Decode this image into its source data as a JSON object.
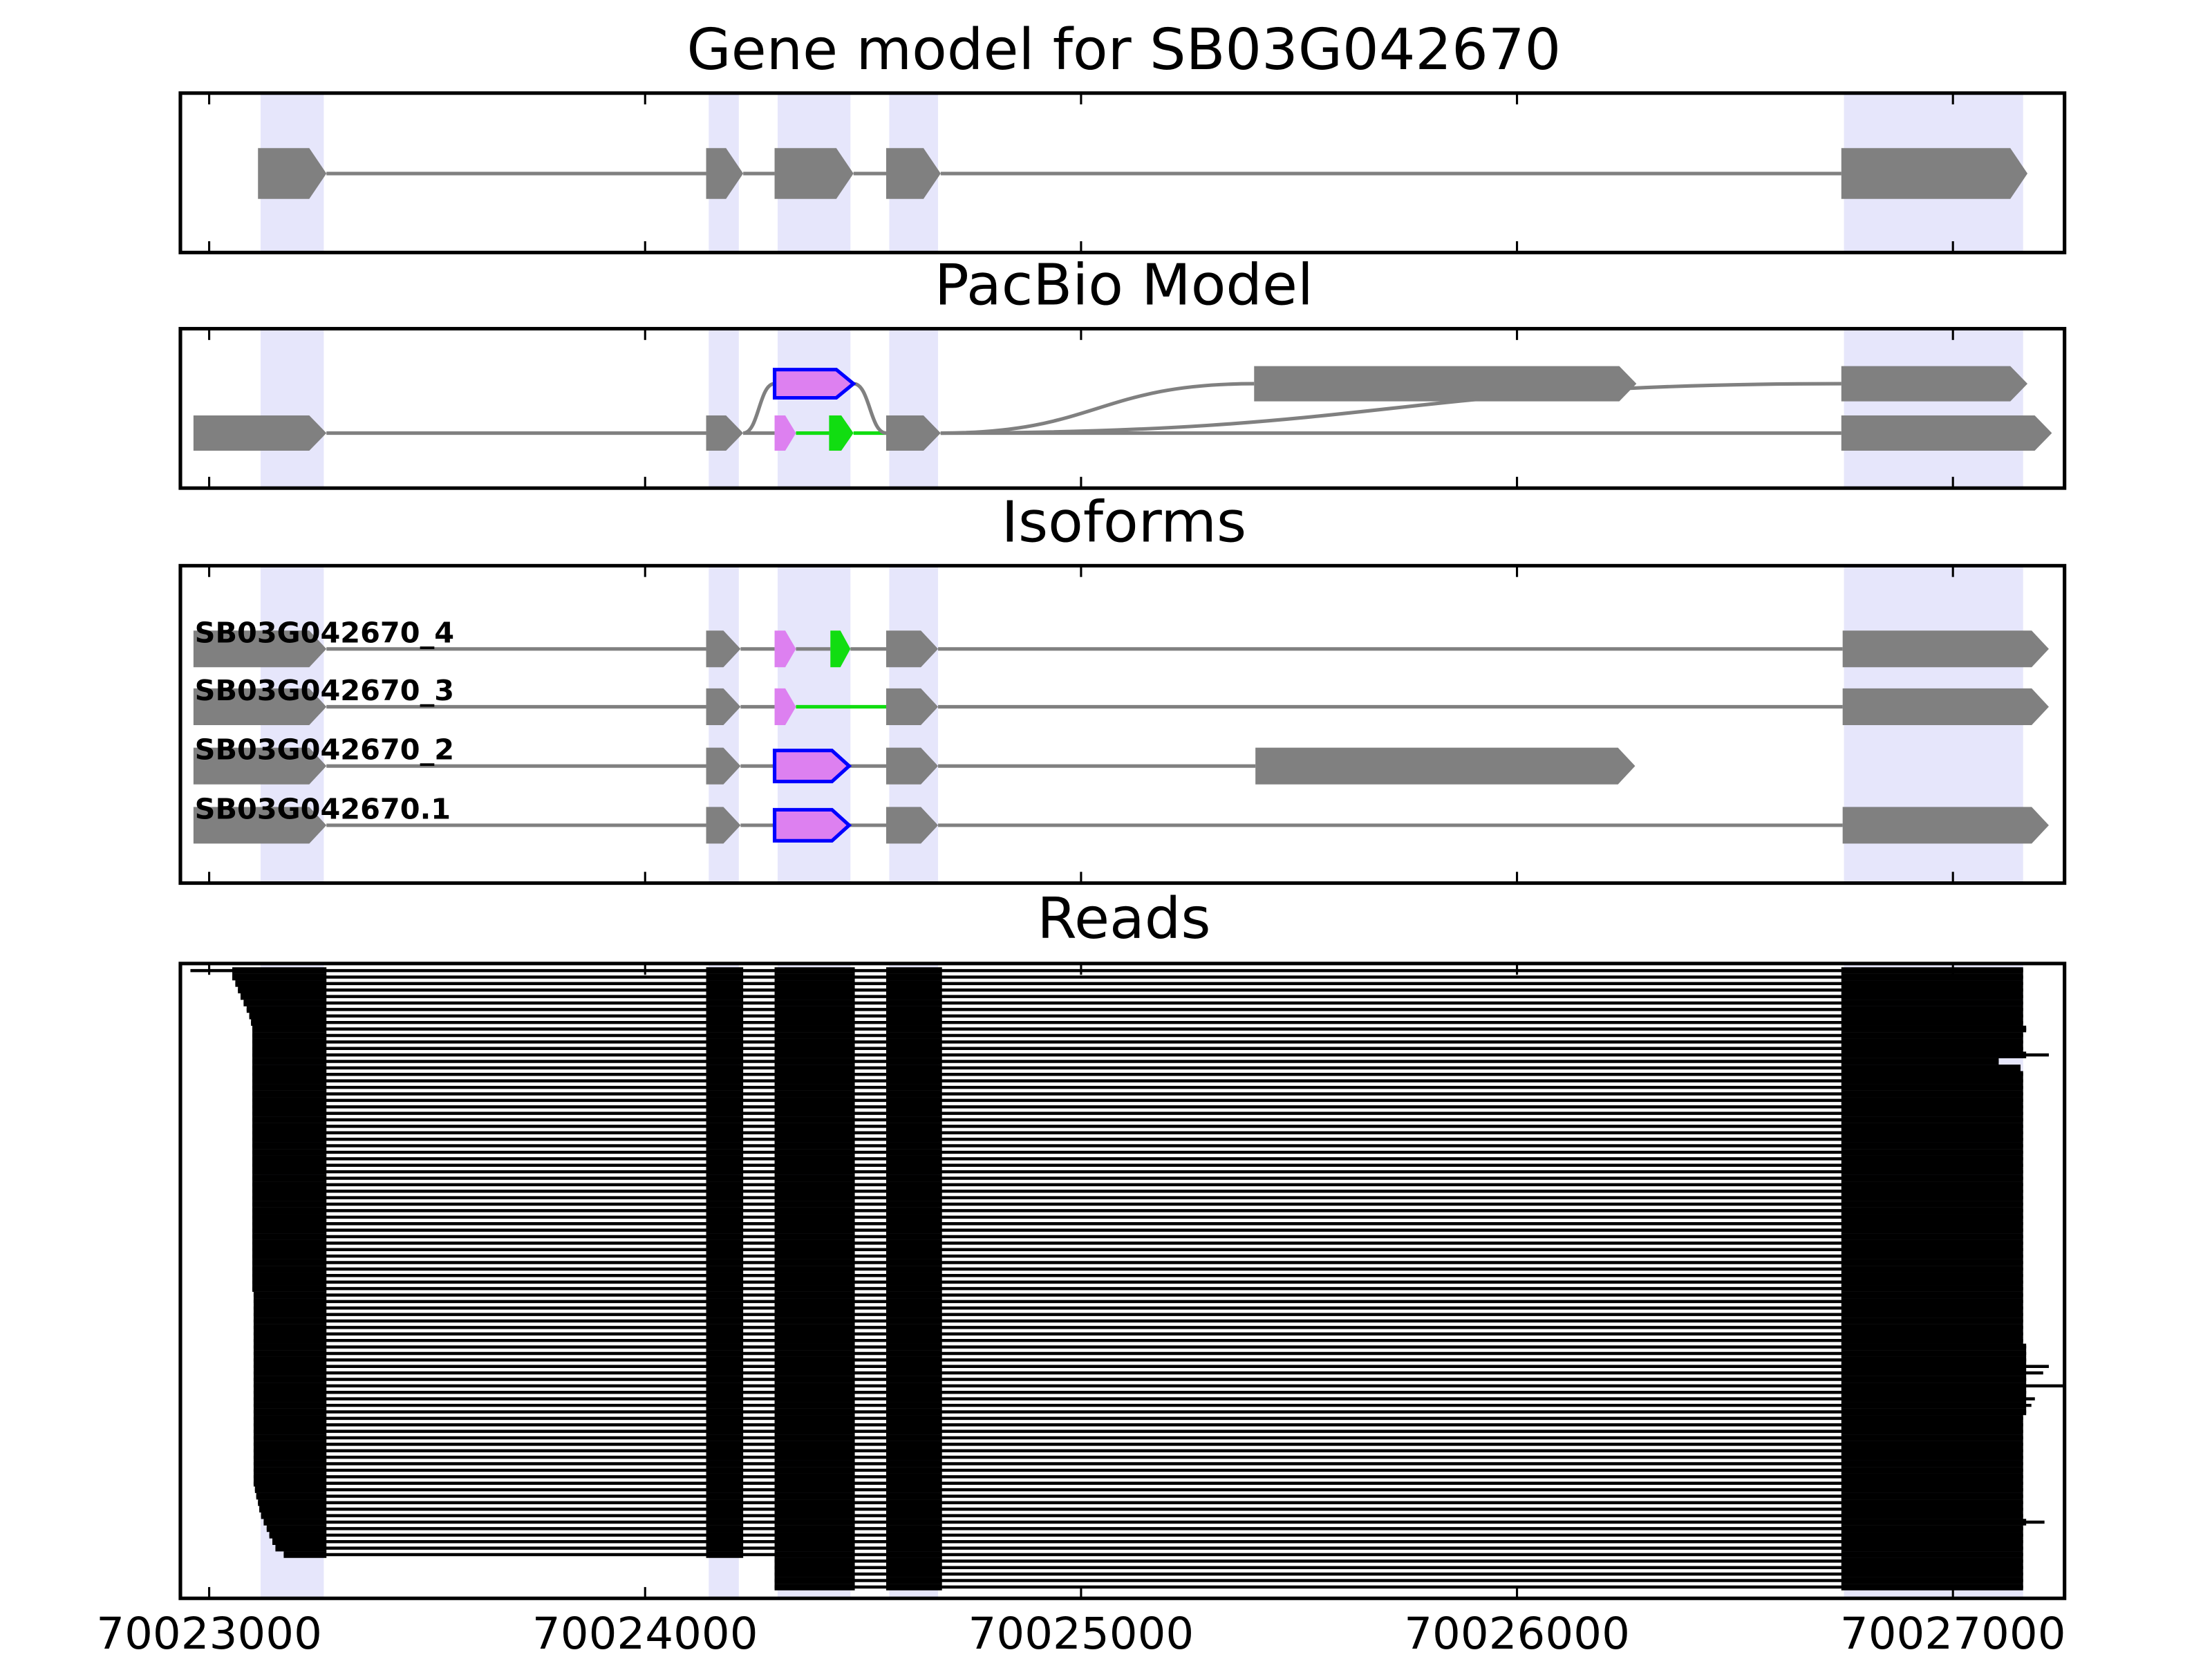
{
  "chart_data": [
    {
      "type": "gene",
      "title": "Gene model for SB03G042670",
      "xlim": [
        70022934,
        70027256
      ],
      "color": "#808080",
      "highlight_color": "#e6e6fb",
      "highlights": [
        [
          70023118,
          70023263
        ],
        [
          70024146,
          70024215
        ],
        [
          70024304,
          70024471
        ],
        [
          70024560,
          70024672
        ],
        [
          70026750,
          70027161
        ]
      ],
      "exons": [
        {
          "start": 70023112,
          "end": 70023269
        },
        {
          "start": 70024140,
          "end": 70024225
        },
        {
          "start": 70024297,
          "end": 70024478
        },
        {
          "start": 70024553,
          "end": 70024678
        },
        {
          "start": 70026744,
          "end": 70027171
        }
      ]
    },
    {
      "type": "graph",
      "title": "PacBio Model",
      "xlim": [
        70022934,
        70027256
      ],
      "highlight_color": "#e6e6fb",
      "highlights": [
        [
          70023118,
          70023263
        ],
        [
          70024146,
          70024215
        ],
        [
          70024304,
          70024471
        ],
        [
          70024560,
          70024672
        ],
        [
          70026750,
          70027161
        ]
      ],
      "nodes": [
        {
          "start": 70022964,
          "end": 70023269,
          "row": 1,
          "color": "#808080"
        },
        {
          "start": 70024140,
          "end": 70024225,
          "row": 1,
          "color": "#808080"
        },
        {
          "start": 70024297,
          "end": 70024346,
          "row": 1,
          "color": "#dd80f0"
        },
        {
          "start": 70024422,
          "end": 70024478,
          "row": 1,
          "color": "#11dd11"
        },
        {
          "start": 70024553,
          "end": 70024678,
          "row": 1,
          "color": "#808080"
        },
        {
          "start": 70026744,
          "end": 70027227,
          "row": 1,
          "color": "#808080"
        },
        {
          "start": 70024297,
          "end": 70024478,
          "row": 0,
          "color": "#dd80f0",
          "edge": "#0000ff"
        },
        {
          "start": 70025397,
          "end": 70026274,
          "row": 0,
          "color": "#808080"
        },
        {
          "start": 70026744,
          "end": 70027171,
          "row": 0,
          "color": "#808080"
        }
      ],
      "edges": [
        [
          0,
          1,
          "#808080"
        ],
        [
          1,
          2,
          "#808080"
        ],
        [
          2,
          3,
          "#11dd11"
        ],
        [
          3,
          4,
          "#11dd11"
        ],
        [
          1,
          6,
          "#808080"
        ],
        [
          6,
          4,
          "#808080"
        ],
        [
          4,
          5,
          "#808080"
        ],
        [
          4,
          7,
          "#808080"
        ],
        [
          4,
          8,
          "#808080"
        ]
      ]
    },
    {
      "type": "isoforms",
      "title": "Isoforms",
      "xlim": [
        70022934,
        70027256
      ],
      "highlight_color": "#e6e6fb",
      "highlights": [
        [
          70023118,
          70023263
        ],
        [
          70024146,
          70024215
        ],
        [
          70024304,
          70024471
        ],
        [
          70024560,
          70024672
        ],
        [
          70026750,
          70027161
        ]
      ],
      "isoforms": [
        {
          "name": "SB03G042670_4",
          "introns": [
            "#808080",
            "#808080",
            "#808080",
            "#808080",
            "#808080"
          ],
          "exons": [
            {
              "start": 70022964,
              "end": 70023269,
              "color": "#808080"
            },
            {
              "start": 70024140,
              "end": 70024219,
              "color": "#808080"
            },
            {
              "start": 70024297,
              "end": 70024346,
              "color": "#dd80f0"
            },
            {
              "start": 70024425,
              "end": 70024471,
              "color": "#11dd11"
            },
            {
              "start": 70024553,
              "end": 70024672,
              "color": "#808080"
            },
            {
              "start": 70026747,
              "end": 70027220,
              "color": "#808080"
            }
          ]
        },
        {
          "name": "SB03G042670_3",
          "introns": [
            "#808080",
            "#808080",
            "#11dd11",
            "#808080"
          ],
          "exons": [
            {
              "start": 70022964,
              "end": 70023269,
              "color": "#808080"
            },
            {
              "start": 70024140,
              "end": 70024219,
              "color": "#808080"
            },
            {
              "start": 70024297,
              "end": 70024346,
              "color": "#dd80f0"
            },
            {
              "start": 70024553,
              "end": 70024672,
              "color": "#808080"
            },
            {
              "start": 70026747,
              "end": 70027220,
              "color": "#808080"
            }
          ]
        },
        {
          "name": "SB03G042670_2",
          "introns": [
            "#808080",
            "#808080",
            "#808080",
            "#808080"
          ],
          "exons": [
            {
              "start": 70022964,
              "end": 70023269,
              "color": "#808080"
            },
            {
              "start": 70024140,
              "end": 70024219,
              "color": "#808080"
            },
            {
              "start": 70024297,
              "end": 70024468,
              "color": "#dd80f0",
              "edge": "#0000ff"
            },
            {
              "start": 70024553,
              "end": 70024672,
              "color": "#808080"
            },
            {
              "start": 70025400,
              "end": 70026271,
              "color": "#808080"
            }
          ]
        },
        {
          "name": "SB03G042670.1",
          "introns": [
            "#808080",
            "#808080",
            "#808080",
            "#808080"
          ],
          "exons": [
            {
              "start": 70022964,
              "end": 70023269,
              "color": "#808080"
            },
            {
              "start": 70024140,
              "end": 70024219,
              "color": "#808080"
            },
            {
              "start": 70024297,
              "end": 70024468,
              "color": "#dd80f0",
              "edge": "#0000ff"
            },
            {
              "start": 70024553,
              "end": 70024672,
              "color": "#808080"
            },
            {
              "start": 70026747,
              "end": 70027220,
              "color": "#808080"
            }
          ]
        }
      ]
    },
    {
      "type": "reads",
      "title": "Reads",
      "xlim": [
        70022934,
        70027256
      ],
      "xticks": [
        70023000,
        70024000,
        70025000,
        70026000,
        70027000
      ],
      "color": "#000000",
      "highlight_color": "#e6e6fb",
      "highlights": [
        [
          70023118,
          70023263
        ],
        [
          70024146,
          70024215
        ],
        [
          70024304,
          70024471
        ],
        [
          70024560,
          70024672
        ],
        [
          70026750,
          70027161
        ]
      ],
      "blocks": [
        [
          70023053,
          70023269
        ],
        [
          70024140,
          70024225
        ],
        [
          70024297,
          70024481
        ],
        [
          70024553,
          70024681
        ],
        [
          70026744,
          70027168
        ]
      ],
      "reads": [
        [
          70022957,
          70027161
        ],
        [
          70023053,
          70027161
        ],
        [
          70023060,
          70027161
        ],
        [
          70023066,
          70027161
        ],
        [
          70023072,
          70027161
        ],
        [
          70023079,
          70027161
        ],
        [
          70023086,
          70027161
        ],
        [
          70023092,
          70027161
        ],
        [
          70023096,
          70027161
        ],
        [
          70023099,
          70027168
        ],
        [
          70023099,
          70027161
        ],
        [
          70023099,
          70027161
        ],
        [
          70023099,
          70027161
        ],
        [
          70023099,
          70027220
        ],
        [
          70023099,
          70027105
        ],
        [
          70023099,
          70027155
        ],
        [
          70023099,
          70027161
        ],
        [
          70023099,
          70027161
        ],
        [
          70023099,
          70027161
        ],
        [
          70023099,
          70027161
        ],
        [
          70023099,
          70027161
        ],
        [
          70023099,
          70027161
        ],
        [
          70023099,
          70027161
        ],
        [
          70023099,
          70027161
        ],
        [
          70023099,
          70027161
        ],
        [
          70023099,
          70027161
        ],
        [
          70023099,
          70027161
        ],
        [
          70023099,
          70027161
        ],
        [
          70023099,
          70027161
        ],
        [
          70023099,
          70027161
        ],
        [
          70023099,
          70027161
        ],
        [
          70023099,
          70027161
        ],
        [
          70023099,
          70027161
        ],
        [
          70023099,
          70027161
        ],
        [
          70023099,
          70027161
        ],
        [
          70023099,
          70027161
        ],
        [
          70023099,
          70027161
        ],
        [
          70023099,
          70027161
        ],
        [
          70023099,
          70027161
        ],
        [
          70023099,
          70027161
        ],
        [
          70023099,
          70027161
        ],
        [
          70023099,
          70027161
        ],
        [
          70023099,
          70027161
        ],
        [
          70023099,
          70027161
        ],
        [
          70023099,
          70027161
        ],
        [
          70023099,
          70027161
        ],
        [
          70023099,
          70027161
        ],
        [
          70023099,
          70027161
        ],
        [
          70023099,
          70027161
        ],
        [
          70023099,
          70027161
        ],
        [
          70023102,
          70027161
        ],
        [
          70023102,
          70027161
        ],
        [
          70023102,
          70027161
        ],
        [
          70023102,
          70027161
        ],
        [
          70023102,
          70027161
        ],
        [
          70023102,
          70027161
        ],
        [
          70023102,
          70027161
        ],
        [
          70023102,
          70027161
        ],
        [
          70023102,
          70027168
        ],
        [
          70023102,
          70027168
        ],
        [
          70023102,
          70027168
        ],
        [
          70023102,
          70027220
        ],
        [
          70023102,
          70027207
        ],
        [
          70023102,
          70027168
        ],
        [
          70023102,
          70027256
        ],
        [
          70023102,
          70027168
        ],
        [
          70023102,
          70027188
        ],
        [
          70023102,
          70027180
        ],
        [
          70023102,
          70027168
        ],
        [
          70023102,
          70027161
        ],
        [
          70023102,
          70027161
        ],
        [
          70023102,
          70027161
        ],
        [
          70023102,
          70027161
        ],
        [
          70023102,
          70027161
        ],
        [
          70023102,
          70027161
        ],
        [
          70023102,
          70027161
        ],
        [
          70023102,
          70027161
        ],
        [
          70023102,
          70027161
        ],
        [
          70023102,
          70027161
        ],
        [
          70023102,
          70027161
        ],
        [
          70023105,
          70027161
        ],
        [
          70023108,
          70027161
        ],
        [
          70023112,
          70027161
        ],
        [
          70023115,
          70027161
        ],
        [
          70023119,
          70027161
        ],
        [
          70023125,
          70027210
        ],
        [
          70023132,
          70027161
        ],
        [
          70023138,
          70027161
        ],
        [
          70023145,
          70027161
        ],
        [
          70023152,
          70027161
        ],
        [
          70023171,
          70027161
        ],
        [
          70024297,
          70027161
        ],
        [
          70024297,
          70027161
        ],
        [
          70024297,
          70027161
        ],
        [
          70024297,
          70027161
        ],
        [
          70024297,
          70027161
        ]
      ]
    }
  ]
}
